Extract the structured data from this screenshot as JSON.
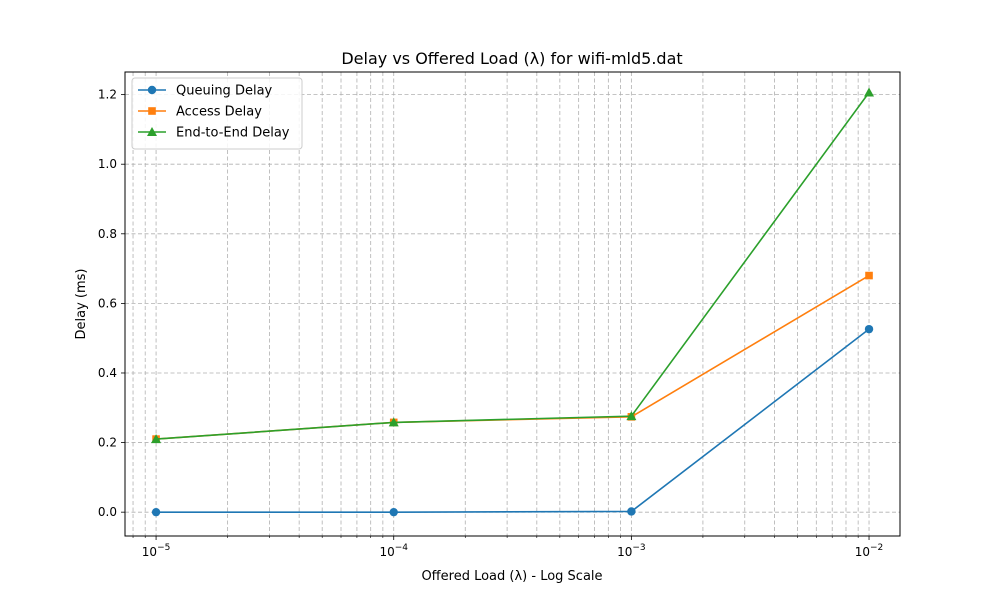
{
  "chart_data": {
    "type": "line",
    "title": "Delay vs Offered Load (λ) for wifi-mld5.dat",
    "xlabel": "Offered Load (λ) - Log Scale",
    "ylabel": "Delay (ms)",
    "xscale": "log",
    "x": [
      1e-05,
      0.0001,
      0.001,
      0.01
    ],
    "xlim": [
      7.4e-06,
      0.0135
    ],
    "ylim": [
      -0.0685,
      1.265
    ],
    "xticks": [
      {
        "value": 1e-05,
        "base": "10",
        "exp": "−5"
      },
      {
        "value": 0.0001,
        "base": "10",
        "exp": "−4"
      },
      {
        "value": 0.001,
        "base": "10",
        "exp": "−3"
      },
      {
        "value": 0.01,
        "base": "10",
        "exp": "−2"
      }
    ],
    "yticks": [
      "0.0",
      "0.2",
      "0.4",
      "0.6",
      "0.8",
      "1.0",
      "1.2"
    ],
    "grid": true,
    "legend_position": "top-left",
    "series": [
      {
        "name": "Queuing Delay",
        "color": "#1f77b4",
        "marker": "circle",
        "values": [
          0.0,
          0.0,
          0.002,
          0.526
        ]
      },
      {
        "name": "Access Delay",
        "color": "#ff7f0e",
        "marker": "square",
        "values": [
          0.21,
          0.258,
          0.274,
          0.68
        ]
      },
      {
        "name": "End-to-End Delay",
        "color": "#2ca02c",
        "marker": "triangle",
        "values": [
          0.21,
          0.258,
          0.276,
          1.206
        ]
      }
    ]
  }
}
